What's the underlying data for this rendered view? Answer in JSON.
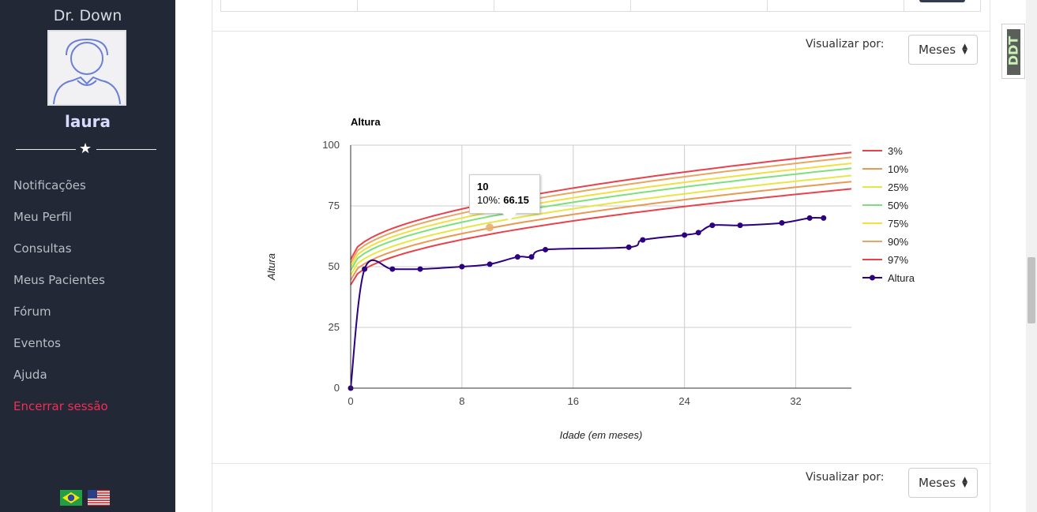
{
  "sidebar": {
    "brand": "Dr. Down",
    "username": "laura",
    "items": [
      {
        "label": "Notificações"
      },
      {
        "label": "Meu Perfil"
      },
      {
        "label": "Consultas"
      },
      {
        "label": "Meus Pacientes"
      },
      {
        "label": "Fórum"
      },
      {
        "label": "Eventos"
      },
      {
        "label": "Ajuda"
      },
      {
        "label": "Encerrar sessão"
      }
    ],
    "flags": [
      "brazil-flag",
      "usa-flag"
    ]
  },
  "view_controls": [
    {
      "label": "Visualizar por:",
      "selected": "Meses"
    },
    {
      "label": "Visualizar por:",
      "selected": "Meses"
    }
  ],
  "badge": {
    "text": "DDT"
  },
  "tooltip": {
    "title": "10",
    "series": "10%:",
    "value": "66.15"
  },
  "colors": {
    "sidebar_bg": "#222835",
    "logout": "#ef2f55",
    "p3": "#e8424c",
    "p10": "#e89a52",
    "p25": "#e7e744",
    "p50": "#7de07d",
    "p75": "#f0e040",
    "p90": "#e8a660",
    "p97": "#e8424c",
    "altura": "#2d007f"
  },
  "chart_data": {
    "type": "line",
    "title": "Altura",
    "xlabel": "Idade (em meses)",
    "ylabel": "Altura",
    "xlim": [
      0,
      36
    ],
    "ylim": [
      0,
      100
    ],
    "xticks": [
      0,
      8,
      16,
      24,
      32
    ],
    "yticks": [
      0,
      25,
      50,
      75,
      100
    ],
    "legend": "right",
    "grid": true,
    "percentiles": [
      {
        "name": "3%",
        "start": 42.5,
        "end": 82,
        "color": "#e8424c"
      },
      {
        "name": "10%",
        "start": 44.5,
        "end": 85,
        "color": "#e89a52"
      },
      {
        "name": "25%",
        "start": 46.5,
        "end": 87.5,
        "color": "#e7e744"
      },
      {
        "name": "50%",
        "start": 48.5,
        "end": 90.5,
        "color": "#7de07d"
      },
      {
        "name": "75%",
        "start": 50,
        "end": 92.5,
        "color": "#f0e040"
      },
      {
        "name": "90%",
        "start": 51.5,
        "end": 95,
        "color": "#e8a660"
      },
      {
        "name": "97%",
        "start": 53,
        "end": 97,
        "color": "#e8424c"
      }
    ],
    "series": [
      {
        "name": "Altura",
        "color": "#2d007f",
        "x": [
          0,
          1,
          3,
          5,
          8,
          10,
          12,
          13,
          14,
          20,
          21,
          24,
          25,
          26,
          28,
          31,
          33,
          34
        ],
        "y": [
          0,
          49,
          49,
          49,
          50,
          51,
          54,
          54,
          57,
          58,
          61,
          63,
          64,
          67,
          67,
          68,
          70,
          70
        ]
      }
    ],
    "highlight": {
      "series": "10%",
      "x": 10,
      "y": 66.15
    }
  }
}
